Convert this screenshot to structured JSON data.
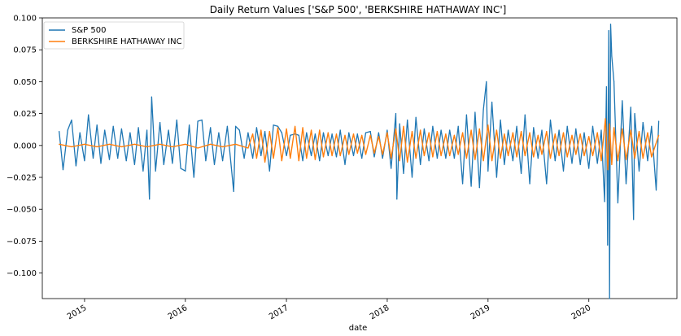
{
  "chart_data": {
    "type": "line",
    "title": "Daily Return Values ['S&P 500', 'BERKSHIRE HATHAWAY INC']",
    "xlabel": "date",
    "ylabel": "",
    "xlim": [
      "2014-08-01",
      "2020-11-15"
    ],
    "ylim": [
      -0.12,
      0.1
    ],
    "grid": false,
    "legend_position": "top-left",
    "x_ticks": [
      "2015",
      "2016",
      "2017",
      "2018",
      "2019",
      "2020"
    ],
    "x_tick_dates": [
      "2015-01-01",
      "2016-01-01",
      "2017-01-01",
      "2018-01-01",
      "2019-01-01",
      "2020-01-01"
    ],
    "y_ticks": [
      "0.100",
      "0.075",
      "0.050",
      "0.025",
      "0.000",
      "−0.025",
      "−0.050",
      "−0.075",
      "−0.100"
    ],
    "y_tick_values": [
      0.1,
      0.075,
      0.05,
      0.025,
      0.0,
      -0.025,
      -0.05,
      -0.075,
      -0.1
    ],
    "series": [
      {
        "name": "S&P 500",
        "color": "#1f77b4",
        "x": [
          "2014-10-01",
          "2014-10-15",
          "2014-11-01",
          "2014-11-15",
          "2014-12-01",
          "2014-12-15",
          "2015-01-01",
          "2015-01-15",
          "2015-02-01",
          "2015-02-15",
          "2015-03-01",
          "2015-03-15",
          "2015-04-01",
          "2015-04-15",
          "2015-05-01",
          "2015-05-15",
          "2015-06-01",
          "2015-06-15",
          "2015-07-01",
          "2015-07-15",
          "2015-08-01",
          "2015-08-15",
          "2015-08-24",
          "2015-09-01",
          "2015-09-15",
          "2015-10-01",
          "2015-10-15",
          "2015-11-01",
          "2015-11-15",
          "2015-12-01",
          "2015-12-15",
          "2016-01-01",
          "2016-01-15",
          "2016-02-01",
          "2016-02-15",
          "2016-03-01",
          "2016-03-15",
          "2016-04-01",
          "2016-04-15",
          "2016-05-01",
          "2016-05-15",
          "2016-06-01",
          "2016-06-24",
          "2016-07-01",
          "2016-07-15",
          "2016-08-01",
          "2016-08-15",
          "2016-09-01",
          "2016-09-15",
          "2016-10-01",
          "2016-10-15",
          "2016-11-01",
          "2016-11-15",
          "2016-12-01",
          "2016-12-15",
          "2017-01-01",
          "2017-01-15",
          "2017-02-01",
          "2017-02-15",
          "2017-03-01",
          "2017-03-15",
          "2017-04-01",
          "2017-04-15",
          "2017-05-01",
          "2017-05-15",
          "2017-06-01",
          "2017-06-15",
          "2017-07-01",
          "2017-07-15",
          "2017-08-01",
          "2017-08-15",
          "2017-09-01",
          "2017-09-15",
          "2017-10-01",
          "2017-10-15",
          "2017-11-01",
          "2017-11-15",
          "2017-12-01",
          "2017-12-15",
          "2018-01-01",
          "2018-01-15",
          "2018-02-01",
          "2018-02-05",
          "2018-02-15",
          "2018-03-01",
          "2018-03-15",
          "2018-04-01",
          "2018-04-15",
          "2018-05-01",
          "2018-05-15",
          "2018-06-01",
          "2018-06-15",
          "2018-07-01",
          "2018-07-15",
          "2018-08-01",
          "2018-08-15",
          "2018-09-01",
          "2018-09-15",
          "2018-10-01",
          "2018-10-15",
          "2018-11-01",
          "2018-11-15",
          "2018-12-01",
          "2018-12-15",
          "2018-12-26",
          "2019-01-01",
          "2019-01-15",
          "2019-02-01",
          "2019-02-15",
          "2019-03-01",
          "2019-03-15",
          "2019-04-01",
          "2019-04-15",
          "2019-05-01",
          "2019-05-15",
          "2019-06-01",
          "2019-06-15",
          "2019-07-01",
          "2019-07-15",
          "2019-08-01",
          "2019-08-15",
          "2019-09-01",
          "2019-09-15",
          "2019-10-01",
          "2019-10-15",
          "2019-11-01",
          "2019-11-15",
          "2019-12-01",
          "2019-12-15",
          "2020-01-01",
          "2020-01-15",
          "2020-02-01",
          "2020-02-15",
          "2020-02-27",
          "2020-03-05",
          "2020-03-09",
          "2020-03-13",
          "2020-03-16",
          "2020-03-20",
          "2020-03-24",
          "2020-04-01",
          "2020-04-15",
          "2020-05-01",
          "2020-05-15",
          "2020-06-01",
          "2020-06-11",
          "2020-06-15",
          "2020-07-01",
          "2020-07-15",
          "2020-08-01",
          "2020-08-15",
          "2020-09-01",
          "2020-09-10"
        ],
        "y": [
          0.011,
          -0.019,
          0.012,
          0.02,
          -0.016,
          0.01,
          -0.012,
          0.024,
          -0.01,
          0.016,
          -0.014,
          0.012,
          -0.011,
          0.015,
          -0.01,
          0.013,
          -0.012,
          0.01,
          -0.015,
          0.014,
          -0.02,
          0.012,
          -0.042,
          0.038,
          -0.02,
          0.018,
          -0.015,
          0.012,
          -0.014,
          0.02,
          -0.018,
          -0.02,
          0.016,
          -0.025,
          0.019,
          0.02,
          -0.012,
          0.014,
          -0.015,
          0.01,
          -0.012,
          0.015,
          -0.036,
          0.015,
          0.012,
          -0.01,
          0.01,
          -0.01,
          0.014,
          -0.008,
          0.011,
          -0.02,
          0.016,
          0.015,
          0.01,
          -0.008,
          0.008,
          0.009,
          0.008,
          -0.012,
          0.01,
          -0.008,
          0.009,
          -0.012,
          0.01,
          -0.008,
          0.009,
          -0.009,
          0.012,
          -0.015,
          0.01,
          -0.008,
          0.009,
          -0.01,
          0.01,
          0.011,
          -0.009,
          0.01,
          -0.01,
          0.012,
          -0.018,
          0.025,
          -0.042,
          0.017,
          -0.022,
          0.02,
          -0.025,
          0.022,
          -0.015,
          0.013,
          -0.012,
          0.015,
          -0.01,
          0.012,
          -0.01,
          0.012,
          -0.01,
          0.015,
          -0.03,
          0.024,
          -0.032,
          0.026,
          -0.033,
          0.028,
          0.05,
          -0.02,
          0.034,
          -0.025,
          0.02,
          -0.015,
          0.012,
          -0.012,
          0.015,
          -0.022,
          0.024,
          -0.03,
          0.014,
          -0.01,
          0.012,
          -0.03,
          0.02,
          -0.012,
          0.012,
          -0.02,
          0.015,
          -0.014,
          0.013,
          -0.015,
          0.01,
          -0.018,
          0.015,
          -0.014,
          0.012,
          -0.044,
          0.046,
          -0.078,
          0.09,
          -0.12,
          0.095,
          0.07,
          0.05,
          -0.045,
          0.035,
          -0.03,
          0.03,
          -0.058,
          0.025,
          -0.02,
          0.018,
          -0.012,
          0.015,
          -0.035,
          0.019
        ]
      },
      {
        "name": "BERKSHIRE HATHAWAY INC",
        "color": "#ff7f0e",
        "x": [
          "2014-10-01",
          "2014-11-15",
          "2015-01-01",
          "2015-02-15",
          "2015-04-01",
          "2015-05-15",
          "2015-07-01",
          "2015-08-15",
          "2015-10-01",
          "2015-11-15",
          "2016-01-01",
          "2016-02-15",
          "2016-04-01",
          "2016-05-15",
          "2016-07-01",
          "2016-08-15",
          "2016-09-01",
          "2016-09-15",
          "2016-10-01",
          "2016-10-15",
          "2016-11-01",
          "2016-11-15",
          "2016-12-01",
          "2016-12-15",
          "2017-01-01",
          "2017-01-15",
          "2017-02-01",
          "2017-02-15",
          "2017-03-01",
          "2017-03-15",
          "2017-04-01",
          "2017-04-15",
          "2017-05-01",
          "2017-05-15",
          "2017-06-01",
          "2017-06-15",
          "2017-07-01",
          "2017-07-15",
          "2017-08-01",
          "2017-08-15",
          "2017-09-01",
          "2017-09-15",
          "2017-10-01",
          "2017-10-15",
          "2017-11-01",
          "2017-11-15",
          "2017-12-01",
          "2017-12-15",
          "2018-01-01",
          "2018-01-15",
          "2018-02-01",
          "2018-02-15",
          "2018-03-01",
          "2018-03-15",
          "2018-04-01",
          "2018-04-15",
          "2018-05-01",
          "2018-05-15",
          "2018-06-01",
          "2018-06-15",
          "2018-07-01",
          "2018-07-15",
          "2018-08-01",
          "2018-08-15",
          "2018-09-01",
          "2018-09-15",
          "2018-10-01",
          "2018-10-15",
          "2018-11-01",
          "2018-11-15",
          "2018-12-01",
          "2018-12-15",
          "2019-01-01",
          "2019-01-15",
          "2019-02-01",
          "2019-02-15",
          "2019-03-01",
          "2019-03-15",
          "2019-04-01",
          "2019-04-15",
          "2019-05-01",
          "2019-05-15",
          "2019-06-01",
          "2019-06-15",
          "2019-07-01",
          "2019-07-15",
          "2019-08-01",
          "2019-08-15",
          "2019-09-01",
          "2019-09-15",
          "2019-10-01",
          "2019-10-15",
          "2019-11-01",
          "2019-11-15",
          "2019-12-01",
          "2019-12-15",
          "2020-01-01",
          "2020-01-15",
          "2020-02-01",
          "2020-02-15",
          "2020-03-01",
          "2020-03-10",
          "2020-03-16",
          "2020-03-24",
          "2020-04-01",
          "2020-04-15",
          "2020-05-01",
          "2020-05-15",
          "2020-06-01",
          "2020-06-15",
          "2020-07-01",
          "2020-07-15",
          "2020-08-01",
          "2020-08-15",
          "2020-09-10"
        ],
        "y": [
          0.001,
          -0.001,
          0.001,
          -0.001,
          0.001,
          -0.001,
          0.001,
          -0.001,
          0.001,
          -0.001,
          0.001,
          -0.002,
          0.001,
          -0.001,
          0.001,
          -0.002,
          0.009,
          -0.01,
          0.012,
          -0.013,
          0.011,
          -0.01,
          0.014,
          -0.012,
          0.013,
          -0.01,
          0.015,
          -0.012,
          0.014,
          -0.01,
          0.012,
          -0.011,
          0.012,
          -0.009,
          0.01,
          -0.008,
          0.009,
          -0.008,
          0.008,
          -0.007,
          0.009,
          -0.006,
          0.008,
          -0.007,
          0.008,
          -0.006,
          0.007,
          -0.007,
          0.01,
          -0.01,
          0.013,
          -0.012,
          0.015,
          -0.013,
          0.011,
          -0.01,
          0.012,
          -0.008,
          0.01,
          -0.009,
          0.011,
          -0.008,
          0.009,
          -0.008,
          0.008,
          -0.007,
          0.01,
          -0.01,
          0.012,
          -0.011,
          0.013,
          -0.012,
          0.016,
          -0.012,
          0.012,
          -0.01,
          0.009,
          -0.008,
          0.01,
          -0.009,
          0.011,
          -0.008,
          0.01,
          -0.009,
          0.008,
          -0.007,
          0.011,
          -0.01,
          0.009,
          -0.008,
          0.01,
          -0.009,
          0.008,
          -0.007,
          0.009,
          -0.008,
          0.007,
          -0.008,
          0.01,
          -0.012,
          0.021,
          -0.019,
          0.017,
          -0.015,
          0.014,
          -0.012,
          0.013,
          -0.011,
          0.012,
          -0.01,
          0.011,
          -0.01,
          0.01,
          -0.009,
          0.008
        ]
      }
    ]
  }
}
